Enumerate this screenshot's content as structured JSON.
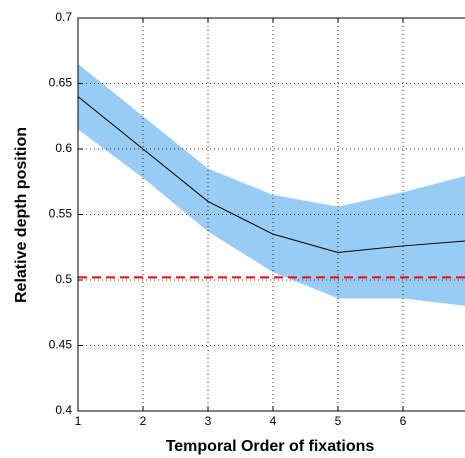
{
  "chart_data": {
    "type": "line_band",
    "xlabel": "Temporal Order of fixations",
    "ylabel": "Relative depth position",
    "x": [
      1,
      2,
      3,
      4,
      5,
      6,
      7
    ],
    "values": [
      0.64,
      0.6,
      0.56,
      0.535,
      0.521,
      0.526,
      0.53
    ],
    "upper": [
      0.665,
      0.625,
      0.585,
      0.565,
      0.556,
      0.567,
      0.58
    ],
    "lower": [
      0.615,
      0.578,
      0.537,
      0.506,
      0.486,
      0.486,
      0.48
    ],
    "color": "#000000",
    "band_color": "#99ccf5",
    "hline": {
      "value": 0.502,
      "color": "#ff0000"
    },
    "xlim": [
      1,
      7
    ],
    "xticks": [
      1,
      2,
      3,
      4,
      5,
      6,
      7
    ],
    "ylim": [
      0.4,
      0.7
    ],
    "yticks": [
      0.4,
      0.45,
      0.5,
      0.55,
      0.6,
      0.65,
      0.7
    ],
    "grid": true
  }
}
